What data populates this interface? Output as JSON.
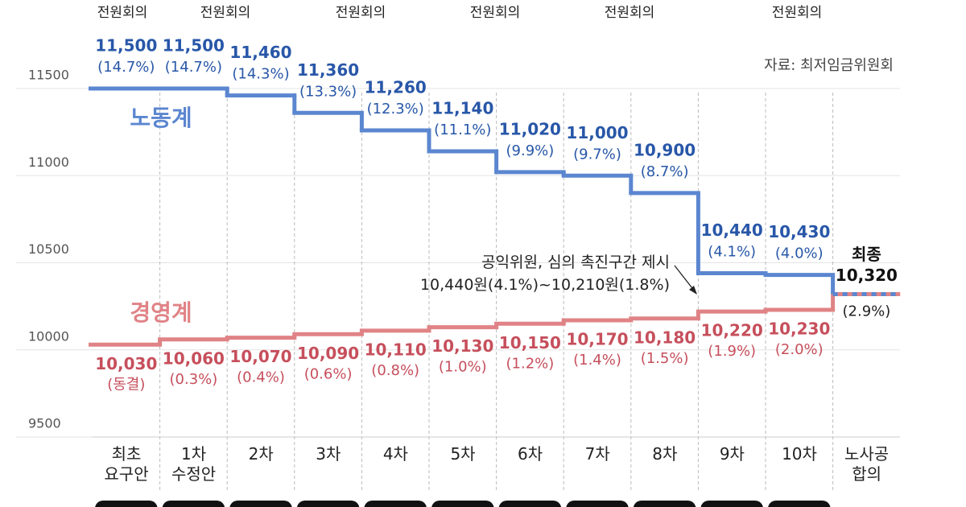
{
  "chart_data": {
    "type": "step",
    "meetings": [
      "전원회의",
      "전원회의",
      "전원회의",
      "전원회의",
      "전원회의",
      "전원회의"
    ],
    "source": "자료: 최저임금위원회",
    "categories": [
      "최초\n요구안",
      "1차\n수정안",
      "2차",
      "3차",
      "4차",
      "5차",
      "6차",
      "7차",
      "8차",
      "9차",
      "10차",
      "노사공\n합의"
    ],
    "series": [
      {
        "name": "노동계",
        "color": "#5b86d0",
        "label_color": "#2857a8",
        "values": [
          11500,
          11500,
          11460,
          11360,
          11260,
          11140,
          11020,
          11000,
          10900,
          10440,
          10430,
          null
        ],
        "value_labels": [
          "11,500",
          "11,500",
          "11,460",
          "11,360",
          "11,260",
          "11,140",
          "11,020",
          "11,000",
          "10,900",
          "10,440",
          "10,430",
          null
        ],
        "pct_labels": [
          "(14.7%)",
          "(14.7%)",
          "(14.3%)",
          "(13.3%)",
          "(12.3%)",
          "(11.1%)",
          "(9.9%)",
          "(9.7%)",
          "(8.7%)",
          "(4.1%)",
          "(4.0%)",
          null
        ]
      },
      {
        "name": "경영계",
        "color": "#e08386",
        "label_color": "#c64f5c",
        "values": [
          10030,
          10060,
          10070,
          10090,
          10110,
          10130,
          10150,
          10170,
          10180,
          10220,
          10230,
          null
        ],
        "value_labels": [
          "10,030",
          "10,060",
          "10,070",
          "10,090",
          "10,110",
          "10,130",
          "10,150",
          "10,170",
          "10,180",
          "10,220",
          "10,230",
          null
        ],
        "pct_labels": [
          "(동결)",
          "(0.3%)",
          "(0.4%)",
          "(0.6%)",
          "(0.8%)",
          "(1.0%)",
          "(1.2%)",
          "(1.4%)",
          "(1.5%)",
          "(1.9%)",
          "(2.0%)",
          null
        ]
      }
    ],
    "final": {
      "label": "최종",
      "value": 10320,
      "value_label": "10,320",
      "pct_label": "(2.9%)"
    },
    "annotation": "공익위원, 심의 촉진구간 제시\n10,440원(4.1%)~10,210원(1.8%)",
    "ylim": [
      9500,
      11500
    ],
    "yticks": [
      9500,
      10000,
      10500,
      11000,
      11500
    ],
    "grid": true
  }
}
